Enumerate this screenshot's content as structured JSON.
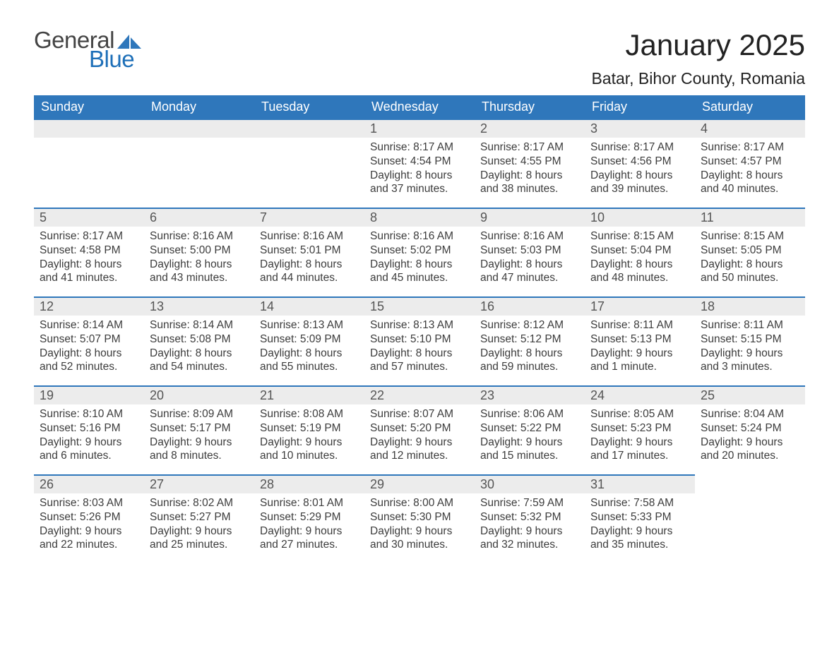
{
  "logo": {
    "general": "General",
    "blue": "Blue"
  },
  "title": "January 2025",
  "location": "Batar, Bihor County, Romania",
  "colors": {
    "header_bg": "#2f77bb",
    "header_text": "#ffffff",
    "daynum_bg": "#ececec",
    "daynum_border": "#2f77bb",
    "body_text": "#3c3c3c",
    "logo_blue": "#1d6fb8",
    "logo_gray": "#444444"
  },
  "day_headers": [
    "Sunday",
    "Monday",
    "Tuesday",
    "Wednesday",
    "Thursday",
    "Friday",
    "Saturday"
  ],
  "weeks": [
    [
      null,
      null,
      null,
      {
        "n": "1",
        "sunrise": "8:17 AM",
        "sunset": "4:54 PM",
        "daylight": "8 hours and 37 minutes."
      },
      {
        "n": "2",
        "sunrise": "8:17 AM",
        "sunset": "4:55 PM",
        "daylight": "8 hours and 38 minutes."
      },
      {
        "n": "3",
        "sunrise": "8:17 AM",
        "sunset": "4:56 PM",
        "daylight": "8 hours and 39 minutes."
      },
      {
        "n": "4",
        "sunrise": "8:17 AM",
        "sunset": "4:57 PM",
        "daylight": "8 hours and 40 minutes."
      }
    ],
    [
      {
        "n": "5",
        "sunrise": "8:17 AM",
        "sunset": "4:58 PM",
        "daylight": "8 hours and 41 minutes."
      },
      {
        "n": "6",
        "sunrise": "8:16 AM",
        "sunset": "5:00 PM",
        "daylight": "8 hours and 43 minutes."
      },
      {
        "n": "7",
        "sunrise": "8:16 AM",
        "sunset": "5:01 PM",
        "daylight": "8 hours and 44 minutes."
      },
      {
        "n": "8",
        "sunrise": "8:16 AM",
        "sunset": "5:02 PM",
        "daylight": "8 hours and 45 minutes."
      },
      {
        "n": "9",
        "sunrise": "8:16 AM",
        "sunset": "5:03 PM",
        "daylight": "8 hours and 47 minutes."
      },
      {
        "n": "10",
        "sunrise": "8:15 AM",
        "sunset": "5:04 PM",
        "daylight": "8 hours and 48 minutes."
      },
      {
        "n": "11",
        "sunrise": "8:15 AM",
        "sunset": "5:05 PM",
        "daylight": "8 hours and 50 minutes."
      }
    ],
    [
      {
        "n": "12",
        "sunrise": "8:14 AM",
        "sunset": "5:07 PM",
        "daylight": "8 hours and 52 minutes."
      },
      {
        "n": "13",
        "sunrise": "8:14 AM",
        "sunset": "5:08 PM",
        "daylight": "8 hours and 54 minutes."
      },
      {
        "n": "14",
        "sunrise": "8:13 AM",
        "sunset": "5:09 PM",
        "daylight": "8 hours and 55 minutes."
      },
      {
        "n": "15",
        "sunrise": "8:13 AM",
        "sunset": "5:10 PM",
        "daylight": "8 hours and 57 minutes."
      },
      {
        "n": "16",
        "sunrise": "8:12 AM",
        "sunset": "5:12 PM",
        "daylight": "8 hours and 59 minutes."
      },
      {
        "n": "17",
        "sunrise": "8:11 AM",
        "sunset": "5:13 PM",
        "daylight": "9 hours and 1 minute."
      },
      {
        "n": "18",
        "sunrise": "8:11 AM",
        "sunset": "5:15 PM",
        "daylight": "9 hours and 3 minutes."
      }
    ],
    [
      {
        "n": "19",
        "sunrise": "8:10 AM",
        "sunset": "5:16 PM",
        "daylight": "9 hours and 6 minutes."
      },
      {
        "n": "20",
        "sunrise": "8:09 AM",
        "sunset": "5:17 PM",
        "daylight": "9 hours and 8 minutes."
      },
      {
        "n": "21",
        "sunrise": "8:08 AM",
        "sunset": "5:19 PM",
        "daylight": "9 hours and 10 minutes."
      },
      {
        "n": "22",
        "sunrise": "8:07 AM",
        "sunset": "5:20 PM",
        "daylight": "9 hours and 12 minutes."
      },
      {
        "n": "23",
        "sunrise": "8:06 AM",
        "sunset": "5:22 PM",
        "daylight": "9 hours and 15 minutes."
      },
      {
        "n": "24",
        "sunrise": "8:05 AM",
        "sunset": "5:23 PM",
        "daylight": "9 hours and 17 minutes."
      },
      {
        "n": "25",
        "sunrise": "8:04 AM",
        "sunset": "5:24 PM",
        "daylight": "9 hours and 20 minutes."
      }
    ],
    [
      {
        "n": "26",
        "sunrise": "8:03 AM",
        "sunset": "5:26 PM",
        "daylight": "9 hours and 22 minutes."
      },
      {
        "n": "27",
        "sunrise": "8:02 AM",
        "sunset": "5:27 PM",
        "daylight": "9 hours and 25 minutes."
      },
      {
        "n": "28",
        "sunrise": "8:01 AM",
        "sunset": "5:29 PM",
        "daylight": "9 hours and 27 minutes."
      },
      {
        "n": "29",
        "sunrise": "8:00 AM",
        "sunset": "5:30 PM",
        "daylight": "9 hours and 30 minutes."
      },
      {
        "n": "30",
        "sunrise": "7:59 AM",
        "sunset": "5:32 PM",
        "daylight": "9 hours and 32 minutes."
      },
      {
        "n": "31",
        "sunrise": "7:58 AM",
        "sunset": "5:33 PM",
        "daylight": "9 hours and 35 minutes."
      },
      null
    ]
  ],
  "labels": {
    "sunrise": "Sunrise: ",
    "sunset": "Sunset: ",
    "daylight": "Daylight: "
  }
}
